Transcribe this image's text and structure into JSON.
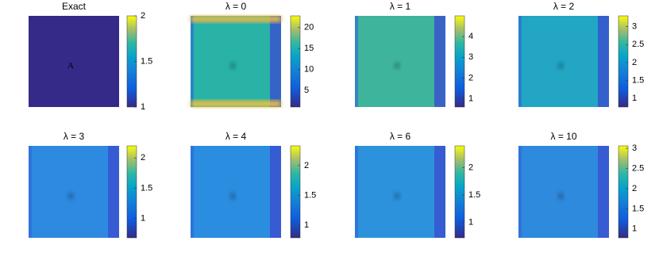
{
  "chart_data": [
    {
      "type": "image",
      "title": "Exact",
      "ylim": [
        1,
        2
      ],
      "yticks": [
        1,
        1.5,
        2
      ]
    },
    {
      "type": "image",
      "title": "λ = 0",
      "ylim": [
        1,
        22.8
      ],
      "yticks": [
        5,
        10,
        15,
        20
      ]
    },
    {
      "type": "image",
      "title": "λ = 1",
      "ylim": [
        0.6,
        5
      ],
      "yticks": [
        1,
        2,
        3,
        4
      ]
    },
    {
      "type": "image",
      "title": "λ = 2",
      "ylim": [
        0.76,
        3.3
      ],
      "yticks": [
        1,
        1.5,
        2,
        2.5,
        3
      ]
    },
    {
      "type": "image",
      "title": "λ = 3",
      "ylim": [
        0.68,
        2.2
      ],
      "yticks": [
        1,
        1.5,
        2
      ]
    },
    {
      "type": "image",
      "title": "λ = 4",
      "ylim": [
        0.79,
        2.33
      ],
      "yticks": [
        1,
        1.5,
        2
      ]
    },
    {
      "type": "image",
      "title": "λ = 6",
      "ylim": [
        0.72,
        2.4
      ],
      "yticks": [
        1,
        1.5,
        2
      ]
    },
    {
      "type": "image",
      "title": "λ = 10",
      "ylim": [
        0.78,
        3.06
      ],
      "yticks": [
        1,
        1.5,
        2,
        2.5,
        3
      ]
    }
  ]
}
